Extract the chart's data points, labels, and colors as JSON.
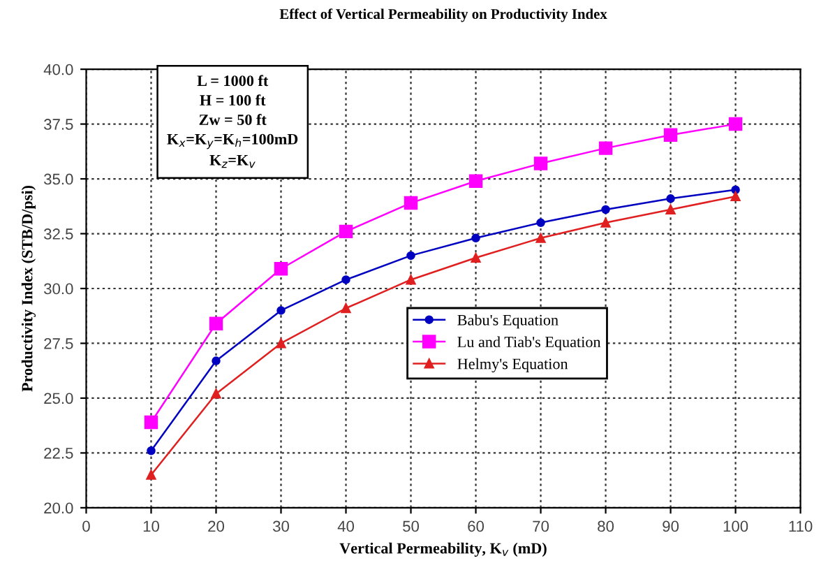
{
  "chart_data": {
    "type": "line",
    "title": "Effect of Vertical Permeability on Productivity Index",
    "xlabel": "Vertical Permeability, K$_{v}$ (mD)",
    "ylabel": "Productivity Index (STB/D/psi)",
    "x": [
      10,
      20,
      30,
      40,
      50,
      60,
      70,
      80,
      90,
      100
    ],
    "series": [
      {
        "name": "Babu's Equation",
        "color": "#0000c0",
        "marker": "circle",
        "values": [
          22.6,
          26.7,
          29.0,
          30.4,
          31.5,
          32.3,
          33.0,
          33.6,
          34.1,
          34.5
        ]
      },
      {
        "name": "Lu and Tiab's Equation",
        "color": "#ff00ff",
        "marker": "square",
        "values": [
          23.9,
          28.4,
          30.9,
          32.6,
          33.9,
          34.9,
          35.7,
          36.4,
          37.0,
          37.5
        ]
      },
      {
        "name": "Helmy's Equation",
        "color": "#e02020",
        "marker": "triangle",
        "values": [
          21.5,
          25.2,
          27.5,
          29.1,
          30.4,
          31.4,
          32.3,
          33.0,
          33.6,
          34.2
        ]
      }
    ],
    "annotations": [
      "L = 1000 ft",
      "H = 100 ft",
      "Zw = 50 ft",
      "K$_{x}$=K$_{y}$=K$_{h}$=100mD",
      "K$_{z}$=K$_{v}$"
    ],
    "xlim": [
      0,
      110
    ],
    "xticks": [
      0,
      10,
      20,
      30,
      40,
      50,
      60,
      70,
      80,
      90,
      100,
      110
    ],
    "ylim": [
      20.0,
      40.0
    ],
    "yticks": [
      {
        "value": 20,
        "label": "20.0"
      },
      {
        "value": 22.5,
        "label": "22.5"
      },
      {
        "value": 25,
        "label": "25.0"
      },
      {
        "value": 27.5,
        "label": "27.5"
      },
      {
        "value": 30,
        "label": "30.0"
      },
      {
        "value": 32.5,
        "label": "32.5"
      },
      {
        "value": 35,
        "label": "35.0"
      },
      {
        "value": 37.5,
        "label": "37.5"
      },
      {
        "value": 40,
        "label": "40.0"
      }
    ],
    "grid": true,
    "legend": "center right",
    "line_style": "solid"
  }
}
